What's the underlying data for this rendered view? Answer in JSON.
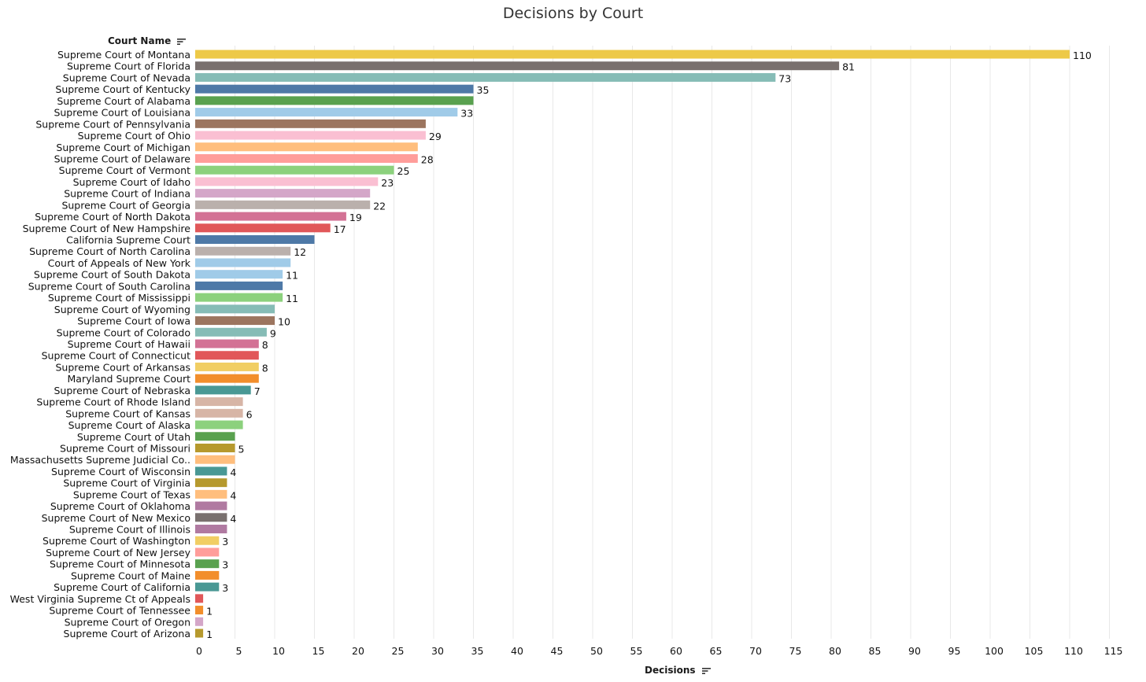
{
  "title": "Decisions by Court",
  "y_header": "Court Name",
  "x_header": "Decisions",
  "sort_icon": "sort-descending-icon",
  "chart_data": {
    "type": "bar",
    "orientation": "horizontal",
    "title": "Decisions by Court",
    "xlabel": "Decisions",
    "ylabel": "Court Name",
    "xlim": [
      0,
      115
    ],
    "xticks": [
      0,
      5,
      10,
      15,
      20,
      25,
      30,
      35,
      40,
      45,
      50,
      55,
      60,
      65,
      70,
      75,
      80,
      85,
      90,
      95,
      100,
      105,
      110,
      115
    ],
    "grid": "vertical",
    "categories": [
      "Supreme Court of Montana",
      "Supreme Court of Florida",
      "Supreme Court of Nevada",
      "Supreme Court of Kentucky",
      "Supreme Court of Alabama",
      "Supreme Court of Louisiana",
      "Supreme Court of Pennsylvania",
      "Supreme Court of Ohio",
      "Supreme Court of Michigan",
      "Supreme Court of Delaware",
      "Supreme Court of Vermont",
      "Supreme Court of Idaho",
      "Supreme Court of Indiana",
      "Supreme Court of Georgia",
      "Supreme Court of North Dakota",
      "Supreme Court of New Hampshire",
      "California Supreme Court",
      "Supreme Court of North Carolina",
      "Court of Appeals of New York",
      "Supreme Court of South Dakota",
      "Supreme Court of South Carolina",
      "Supreme Court of Mississippi",
      "Supreme Court of Wyoming",
      "Supreme Court of Iowa",
      "Supreme Court of Colorado",
      "Supreme Court of Hawaii",
      "Supreme Court of Connecticut",
      "Supreme Court of Arkansas",
      "Maryland Supreme Court",
      "Supreme Court of Nebraska",
      "Supreme Court of Rhode Island",
      "Supreme Court of Kansas",
      "Supreme Court of Alaska",
      "Supreme Court of Utah",
      "Supreme Court of Missouri",
      "Massachusetts Supreme Judicial Co..",
      "Supreme Court of Wisconsin",
      "Supreme Court of Virginia",
      "Supreme Court of Texas",
      "Supreme Court of Oklahoma",
      "Supreme Court of New Mexico",
      "Supreme Court of Illinois",
      "Supreme Court of Washington",
      "Supreme Court of New Jersey",
      "Supreme Court of Minnesota",
      "Supreme Court of Maine",
      "Supreme Court of California",
      "West Virginia Supreme Ct of Appeals",
      "Supreme Court of Tennessee",
      "Supreme Court of Oregon",
      "Supreme Court of Arizona"
    ],
    "values": [
      110,
      81,
      73,
      35,
      35,
      33,
      29,
      29,
      28,
      28,
      25,
      23,
      22,
      22,
      19,
      17,
      15,
      12,
      12,
      11,
      11,
      11,
      10,
      10,
      9,
      8,
      8,
      8,
      8,
      7,
      6,
      6,
      6,
      5,
      5,
      5,
      4,
      4,
      4,
      4,
      4,
      4,
      3,
      3,
      3,
      3,
      3,
      1,
      1,
      1,
      1
    ],
    "labels": [
      "110",
      "81",
      "73",
      "35",
      "",
      "33",
      "",
      "29",
      "",
      "28",
      "25",
      "23",
      "",
      "22",
      "19",
      "17",
      "",
      "12",
      "",
      "11",
      "",
      "11",
      "",
      "10",
      "9",
      "8",
      "",
      "8",
      "",
      "7",
      "",
      "6",
      "",
      "",
      "5",
      "",
      "4",
      "",
      "4",
      "",
      "4",
      "",
      "3",
      "",
      "3",
      "",
      "3",
      "",
      "1",
      "",
      "1"
    ],
    "colors": [
      "#EDC948",
      "#79706E",
      "#86BCB6",
      "#4E79A7",
      "#59A14F",
      "#A0CBE8",
      "#9C755F",
      "#FABFD2",
      "#FFBE7D",
      "#FF9D9A",
      "#8CD17D",
      "#FABFD2",
      "#D4A6C8",
      "#BAB0AC",
      "#D37295",
      "#E15759",
      "#4E79A7",
      "#BAB0AC",
      "#A0CBE8",
      "#A0CBE8",
      "#4E79A7",
      "#8CD17D",
      "#86BCB6",
      "#9C755F",
      "#86BCB6",
      "#D37295",
      "#E15759",
      "#F1CE63",
      "#F28E2B",
      "#499894",
      "#D7B5A6",
      "#D7B5A6",
      "#8CD17D",
      "#59A14F",
      "#B6992D",
      "#FFBE7D",
      "#499894",
      "#B6992D",
      "#FFBE7D",
      "#B07AA1",
      "#79706E",
      "#B07AA1",
      "#F1CE63",
      "#FF9D9A",
      "#59A14F",
      "#F28E2B",
      "#499894",
      "#E15759",
      "#F28E2B",
      "#D4A6C8",
      "#B6992D"
    ]
  }
}
